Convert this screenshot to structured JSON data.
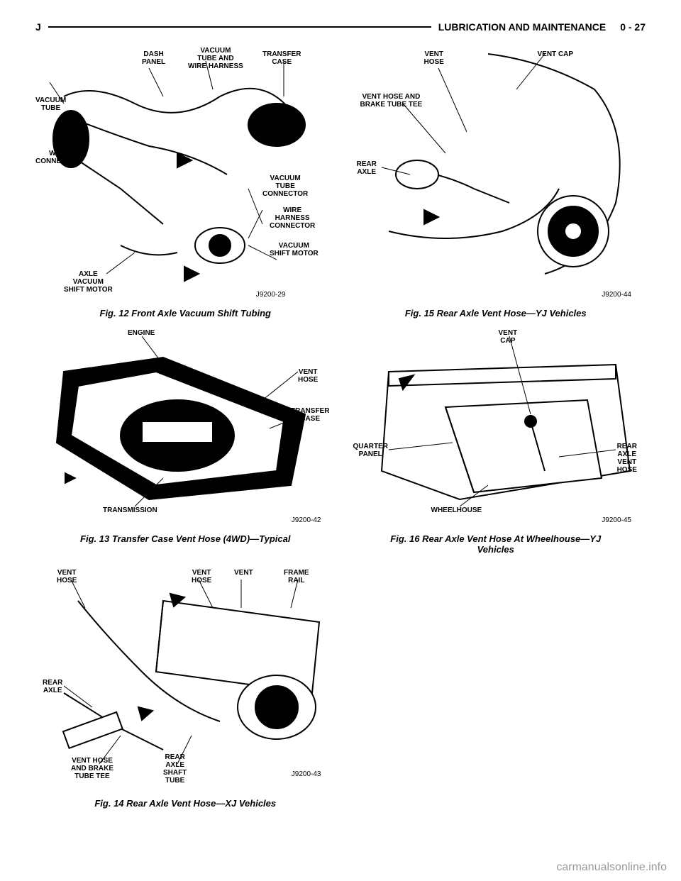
{
  "header": {
    "left": "J",
    "right_title": "LUBRICATION AND MAINTENANCE",
    "page_ref": "0 - 27"
  },
  "figures": {
    "fig12": {
      "caption": "Fig. 12 Front Axle Vacuum Shift Tubing",
      "refnum": "J9200-29",
      "labels": {
        "dash_panel": "DASH\nPANEL",
        "vacuum_tube_wire": "VACUUM\nTUBE AND\nWIRE HARNESS",
        "transfer_case": "TRANSFER\nCASE",
        "vacuum_tube": "VACUUM\nTUBE",
        "wire_connector": "WIRE\nCONNECTOR",
        "vacuum_tube_conn": "VACUUM\nTUBE\nCONNECTOR",
        "wire_harness_conn": "WIRE\nHARNESS\nCONNECTOR",
        "vacuum_shift_motor": "VACUUM\nSHIFT MOTOR",
        "axle_vacuum": "AXLE\nVACUUM\nSHIFT MOTOR"
      }
    },
    "fig13": {
      "caption": "Fig. 13 Transfer Case Vent Hose (4WD)—Typical",
      "refnum": "J9200-42",
      "labels": {
        "engine": "ENGINE",
        "vent_hose": "VENT\nHOSE",
        "transfer_case": "TRANSFER\nCASE",
        "transmission": "TRANSMISSION"
      }
    },
    "fig14": {
      "caption": "Fig. 14 Rear Axle Vent Hose—XJ Vehicles",
      "refnum": "J9200-43",
      "labels": {
        "vent_hose_l": "VENT\nHOSE",
        "vent_hose_r": "VENT\nHOSE",
        "vent": "VENT",
        "frame_rail": "FRAME\nRAIL",
        "rear_axle": "REAR\nAXLE",
        "vent_hose_brake": "VENT HOSE\nAND BRAKE\nTUBE TEE",
        "rear_axle_shaft": "REAR\nAXLE\nSHAFT\nTUBE"
      }
    },
    "fig15": {
      "caption": "Fig. 15 Rear Axle Vent Hose—YJ Vehicles",
      "refnum": "J9200-44",
      "labels": {
        "vent_hose": "VENT\nHOSE",
        "vent_cap": "VENT CAP",
        "vent_hose_brake": "VENT HOSE AND\nBRAKE TUBE TEE",
        "rear_axle": "REAR\nAXLE"
      }
    },
    "fig16": {
      "caption": "Fig. 16 Rear Axle Vent Hose At Wheelhouse—YJ\nVehicles",
      "refnum": "J9200-45",
      "labels": {
        "vent_cap": "VENT\nCAP",
        "quarter_panel": "QUARTER\nPANEL",
        "rear_axle_vent": "REAR AXLE\nVENT\nHOSE",
        "wheelhouse": "WHEELHOUSE"
      }
    }
  },
  "watermark": "carmanualsonline.info"
}
